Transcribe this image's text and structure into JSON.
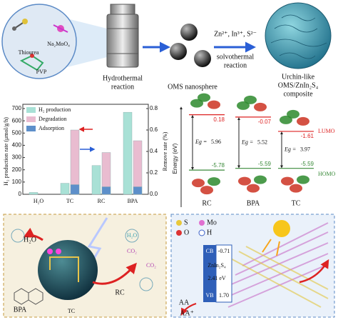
{
  "top": {
    "precursors": [
      "Thiourea",
      "Na₂MoO₄",
      "PVP"
    ],
    "step1": [
      "Hydrothermal",
      "reaction"
    ],
    "intermediate": "OMS nanosphere",
    "ions": "Zn²⁺, In³⁺, S²⁻",
    "step2": [
      "solvothermal",
      "reaction"
    ],
    "product": [
      "Urchin-like",
      "OMS/ZnIn₂S₄",
      "composite"
    ]
  },
  "chart_data": {
    "type": "bar",
    "categories": [
      "H₂O",
      "TC",
      "RC",
      "BPA"
    ],
    "ylabel": "H₂ production rate (μmol/g/h)",
    "y2label": "Remove rate (%)",
    "ylim": [
      0,
      700
    ],
    "yticks": [
      0,
      100,
      200,
      300,
      400,
      500,
      600,
      700
    ],
    "y2lim": [
      0,
      0.8
    ],
    "y2ticks": [
      {
        "value": 0,
        "label": "0.0"
      },
      0.2,
      0.4,
      0.6,
      0.8
    ],
    "legend": "upper left",
    "series": [
      {
        "name": "H₂ production",
        "color": "#a9e1d6",
        "values": [
          15,
          90,
          235,
          670
        ]
      },
      {
        "name": "Degradation",
        "color": "#e9bcd0",
        "axis": "y2",
        "values": [
          null,
          0.6,
          0.39,
          0.5
        ]
      },
      {
        "name": "Adsorption",
        "color": "#5d8fca",
        "axis": "y2",
        "values": [
          null,
          0.09,
          0.07,
          0.07
        ]
      }
    ]
  },
  "energy_diagram": {
    "axis_label": "Energy (eV)",
    "lumo_label": "LUMO",
    "homo_label": "HOMO",
    "eg_label": "Eg =",
    "molecules": [
      {
        "name": "RC",
        "lumo": 0.18,
        "homo": -5.78,
        "eg": 5.96
      },
      {
        "name": "BPA",
        "lumo": -0.07,
        "homo": -5.59,
        "eg": 5.52
      },
      {
        "name": "TC",
        "lumo": -1.61,
        "homo": -5.59,
        "eg": 3.97
      }
    ]
  },
  "mechanism": {
    "reactant": "H₂O",
    "pollutants": [
      "BPA",
      "TC",
      "RC"
    ],
    "products": [
      "CO₂",
      "CO₂",
      "H₂O"
    ]
  },
  "band_structure": {
    "elements": [
      "S",
      "O",
      "Mo",
      "H"
    ],
    "cb_label": "CB",
    "cb": "-0.71",
    "material": "ZnIn₂S₄",
    "gap": "2.41 eV",
    "vb_label": "VB",
    "vb": "1.70",
    "donor": "AA",
    "donor_oxidized": "AA⁺"
  }
}
